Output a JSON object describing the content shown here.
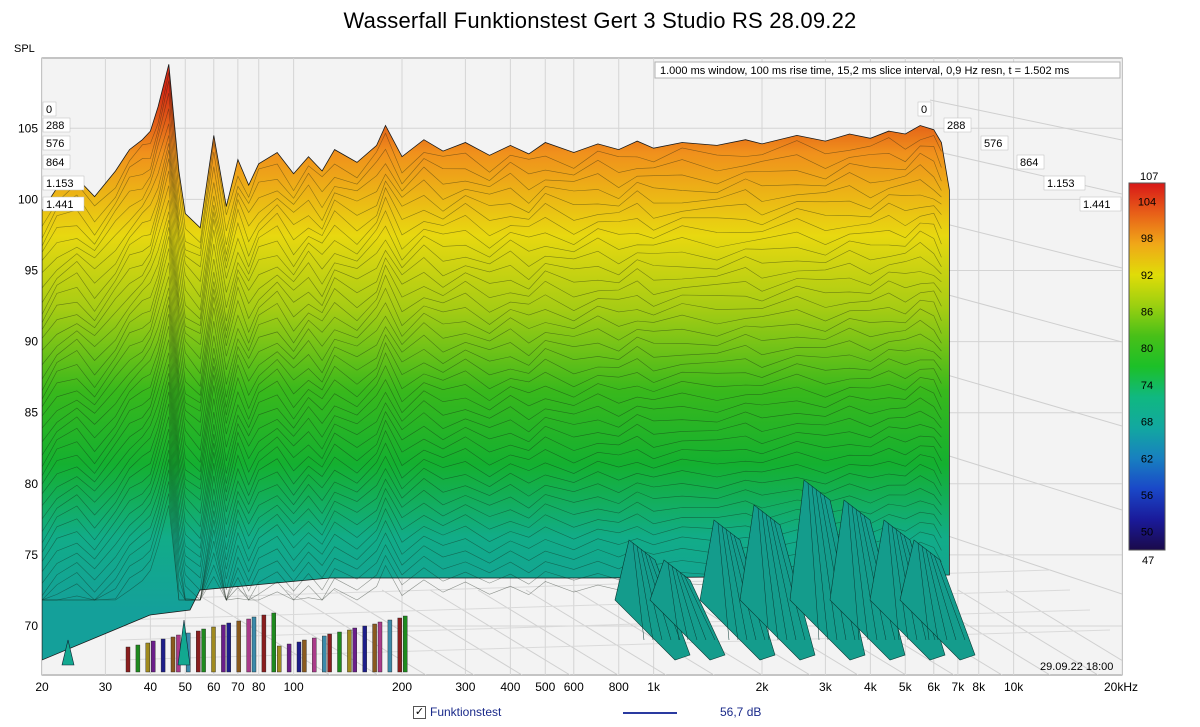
{
  "chart_data": {
    "type": "area",
    "title": "Wasserfall Funktionstest Gert 3 Studio RS 28.09.22",
    "ylabel": "SPL",
    "y_ticks": [
      "105",
      "100",
      "95",
      "90",
      "85",
      "80",
      "75",
      "70"
    ],
    "ylim": [
      67,
      107
    ],
    "x_ticks": [
      "20",
      "30",
      "40",
      "50",
      "60",
      "70",
      "80",
      "100",
      "200",
      "300",
      "400",
      "500",
      "600",
      "800",
      "1k",
      "2k",
      "3k",
      "4k",
      "5k",
      "6k",
      "7k",
      "8k",
      "10k",
      "20kHz"
    ],
    "x_tick_values": [
      20,
      30,
      40,
      50,
      60,
      70,
      80,
      100,
      200,
      300,
      400,
      500,
      600,
      800,
      1000,
      2000,
      3000,
      4000,
      5000,
      6000,
      7000,
      8000,
      10000,
      20000
    ],
    "xlim": [
      20,
      20000
    ],
    "x_scale": "log",
    "time_labels_left": [
      "0",
      "288",
      "576",
      "864",
      "1.153",
      "1.441"
    ],
    "time_labels_right": [
      "0",
      "288",
      "576",
      "864",
      "1.153",
      "1.441"
    ],
    "info": "1.000 ms window, 100 ms rise time, 15,2 ms slice interval, 0,9 Hz resn, t = 1.502 ms",
    "date_stamp": "29.09.22 18:00",
    "colorbar": {
      "max_label": "107",
      "min_label": "47",
      "ticks": [
        "104",
        "98",
        "92",
        "86",
        "80",
        "74",
        "68",
        "62",
        "56",
        "50"
      ],
      "tick_values": [
        104,
        98,
        92,
        86,
        80,
        74,
        68,
        62,
        56,
        50
      ],
      "range": [
        47,
        107
      ]
    },
    "series": [
      {
        "name": "Funktionstest",
        "value_label": "56,7 dB",
        "color": "#2a3aa0",
        "front_slice": {
          "x": [
            20,
            22,
            25,
            28,
            32,
            35,
            38,
            40,
            42,
            45,
            48,
            50,
            55,
            60,
            65,
            70,
            75,
            80,
            90,
            100,
            110,
            120,
            130,
            150,
            170,
            180,
            200,
            230,
            260,
            300,
            350,
            400,
            450,
            500,
            600,
            700,
            800,
            900,
            1000,
            1200,
            1500,
            1800,
            2000,
            2500,
            3000,
            3500,
            4000,
            4500,
            5000,
            5500,
            6000,
            6300
          ],
          "y": [
            99.2,
            100.8,
            101.5,
            100.2,
            102.0,
            103.5,
            104.2,
            104.8,
            106.5,
            109.5,
            102.0,
            99.0,
            98.0,
            104.5,
            99.5,
            102.8,
            101.0,
            102.5,
            103.3,
            101.8,
            103.0,
            102.0,
            103.5,
            102.6,
            103.8,
            105.2,
            103.0,
            104.2,
            103.4,
            104.0,
            103.1,
            103.8,
            103.2,
            104.0,
            103.3,
            103.9,
            103.5,
            104.1,
            103.6,
            104.0,
            103.8,
            104.2,
            103.9,
            104.5,
            104.1,
            104.6,
            104.3,
            104.8,
            104.6,
            105.2,
            104.9,
            104.0
          ]
        }
      }
    ]
  }
}
